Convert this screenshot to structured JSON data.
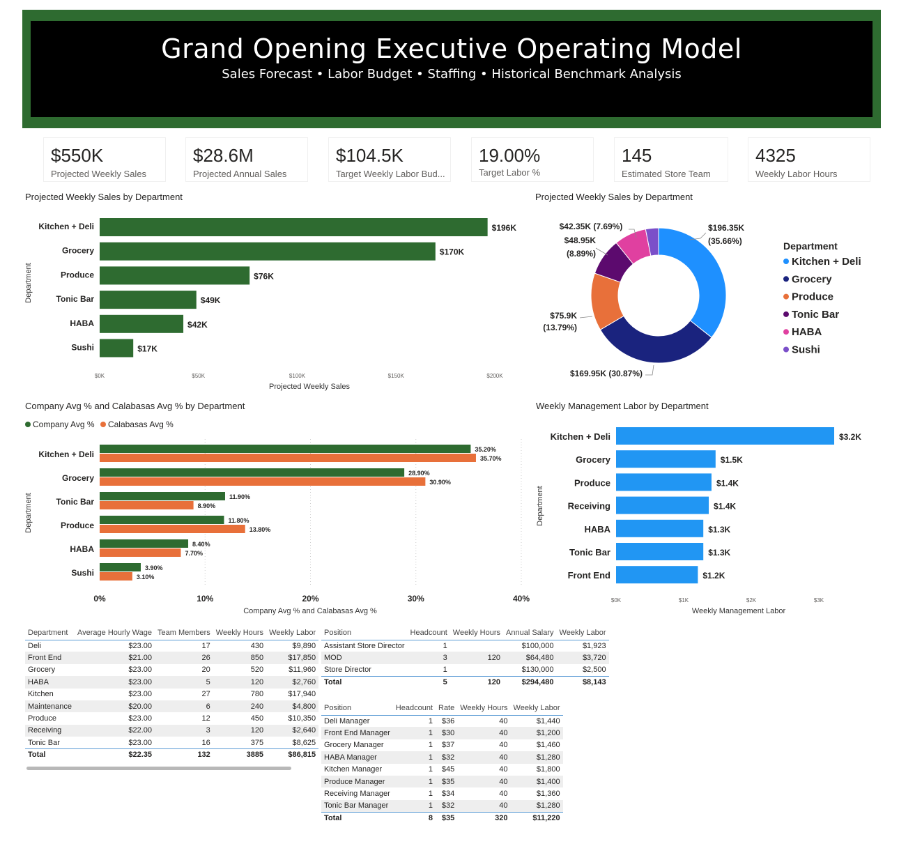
{
  "header": {
    "title": "Grand Opening Executive Operating Model",
    "subtitle": "Sales Forecast • Labor Budget • Staffing • Historical Benchmark Analysis"
  },
  "kpis": [
    {
      "value": "$550K",
      "label": "Projected Weekly Sales"
    },
    {
      "value": "$28.6M",
      "label": "Projected Annual Sales"
    },
    {
      "value": "$104.5K",
      "label": "Target Weekly Labor Bud..."
    },
    {
      "value": "19.00%",
      "label": "Target Labor %"
    },
    {
      "value": "145",
      "label": "Estimated Store Team"
    },
    {
      "value": "4325",
      "label": "Weekly Labor Hours"
    }
  ],
  "colors": {
    "green": "#2e6b30",
    "orange": "#e8703a",
    "blue": "#2196f3",
    "kitchen_deli": "#1e90ff",
    "grocery": "#1a237e",
    "produce": "#e8703a",
    "tonic_bar": "#5c0a6e",
    "haba": "#e040a0",
    "sushi": "#7b4fc9"
  },
  "chart_data": [
    {
      "type": "bar",
      "orientation": "horizontal",
      "title": "Projected Weekly Sales by Department",
      "xlabel": "Projected Weekly Sales",
      "ylabel": "Department",
      "categories": [
        "Kitchen + Deli",
        "Grocery",
        "Produce",
        "Tonic Bar",
        "HABA",
        "Sushi"
      ],
      "values": [
        196350,
        169950,
        75900,
        48950,
        42350,
        17000
      ],
      "data_labels": [
        "$196K",
        "$170K",
        "$76K",
        "$49K",
        "$42K",
        "$17K"
      ],
      "xlim": [
        0,
        200000
      ],
      "xticks": [
        "$0K",
        "$50K",
        "$100K",
        "$150K",
        "$200K"
      ],
      "grid": false
    },
    {
      "type": "pie",
      "donut": true,
      "title": "Projected Weekly Sales by Department",
      "legend_title": "Department",
      "legend_position": "right",
      "categories": [
        "Kitchen + Deli",
        "Grocery",
        "Produce",
        "Tonic Bar",
        "HABA",
        "Sushi"
      ],
      "values": [
        196350,
        169950,
        75900,
        48950,
        42350,
        17000
      ],
      "data_labels": [
        {
          "value": "$196.35K",
          "pct": "(35.66%)"
        },
        {
          "value": "$169.95K (30.87%)",
          "pct": ""
        },
        {
          "value": "$75.9K",
          "pct": "(13.79%)"
        },
        {
          "value": "$48.95K",
          "pct": "(8.89%)"
        },
        {
          "value": "$42.35K (7.69%)",
          "pct": ""
        }
      ]
    },
    {
      "type": "bar",
      "orientation": "horizontal",
      "title": "Company Avg % and Calabasas Avg % by Department",
      "xlabel": "Company Avg % and Calabasas Avg %",
      "ylabel": "Department",
      "categories": [
        "Kitchen + Deli",
        "Grocery",
        "Tonic Bar",
        "Produce",
        "HABA",
        "Sushi"
      ],
      "series": [
        {
          "name": "Company Avg %",
          "values": [
            35.2,
            28.9,
            11.9,
            11.8,
            8.4,
            3.9
          ],
          "labels": [
            "35.20%",
            "28.90%",
            "11.90%",
            "11.80%",
            "8.40%",
            "3.90%"
          ]
        },
        {
          "name": "Calabasas Avg %",
          "values": [
            35.7,
            30.9,
            8.9,
            13.8,
            7.7,
            3.1
          ],
          "labels": [
            "35.70%",
            "30.90%",
            "8.90%",
            "13.80%",
            "7.70%",
            "3.10%"
          ]
        }
      ],
      "xlim": [
        0,
        40
      ],
      "xticks": [
        "0%",
        "10%",
        "20%",
        "30%",
        "40%"
      ],
      "legend_position": "top-left",
      "grid": true
    },
    {
      "type": "bar",
      "orientation": "horizontal",
      "title": "Weekly Management Labor by Department",
      "xlabel": "Weekly Management Labor",
      "ylabel": "Department",
      "categories": [
        "Kitchen + Deli",
        "Grocery",
        "Produce",
        "Receiving",
        "HABA",
        "Tonic Bar",
        "Front End"
      ],
      "values": [
        3200,
        1460,
        1400,
        1360,
        1280,
        1280,
        1200
      ],
      "data_labels": [
        "$3.2K",
        "$1.5K",
        "$1.4K",
        "$1.4K",
        "$1.3K",
        "$1.3K",
        "$1.2K"
      ],
      "xlim": [
        0,
        3200
      ],
      "xticks": [
        "$0K",
        "$1K",
        "$2K",
        "$3K"
      ],
      "grid": false
    }
  ],
  "dept_table": {
    "columns": [
      "Department",
      "Average Hourly Wage",
      "Team Members",
      "Weekly Hours",
      "Weekly Labor"
    ],
    "rows": [
      [
        "Deli",
        "$23.00",
        "17",
        "430",
        "$9,890"
      ],
      [
        "Front End",
        "$21.00",
        "26",
        "850",
        "$17,850"
      ],
      [
        "Grocery",
        "$23.00",
        "20",
        "520",
        "$11,960"
      ],
      [
        "HABA",
        "$23.00",
        "5",
        "120",
        "$2,760"
      ],
      [
        "Kitchen",
        "$23.00",
        "27",
        "780",
        "$17,940"
      ],
      [
        "Maintenance",
        "$20.00",
        "6",
        "240",
        "$4,800"
      ],
      [
        "Produce",
        "$23.00",
        "12",
        "450",
        "$10,350"
      ],
      [
        "Receiving",
        "$22.00",
        "3",
        "120",
        "$2,640"
      ],
      [
        "Tonic Bar",
        "$23.00",
        "16",
        "375",
        "$8,625"
      ]
    ],
    "total": [
      "Total",
      "$22.35",
      "132",
      "3885",
      "$86,815"
    ]
  },
  "exec_table": {
    "columns": [
      "Position",
      "Headcount",
      "Weekly Hours",
      "Annual Salary",
      "Weekly Labor"
    ],
    "rows": [
      [
        "Assistant Store Director",
        "1",
        "",
        "$100,000",
        "$1,923"
      ],
      [
        "MOD",
        "3",
        "120",
        "$64,480",
        "$3,720"
      ],
      [
        "Store Director",
        "1",
        "",
        "$130,000",
        "$2,500"
      ]
    ],
    "total": [
      "Total",
      "5",
      "120",
      "$294,480",
      "$8,143"
    ]
  },
  "mgr_table": {
    "columns": [
      "Position",
      "Headcount",
      "Rate",
      "Weekly Hours",
      "Weekly Labor"
    ],
    "rows": [
      [
        "Deli Manager",
        "1",
        "$36",
        "40",
        "$1,440"
      ],
      [
        "Front End Manager",
        "1",
        "$30",
        "40",
        "$1,200"
      ],
      [
        "Grocery Manager",
        "1",
        "$37",
        "40",
        "$1,460"
      ],
      [
        "HABA Manager",
        "1",
        "$32",
        "40",
        "$1,280"
      ],
      [
        "Kitchen Manager",
        "1",
        "$45",
        "40",
        "$1,800"
      ],
      [
        "Produce Manager",
        "1",
        "$35",
        "40",
        "$1,400"
      ],
      [
        "Receiving Manager",
        "1",
        "$34",
        "40",
        "$1,360"
      ],
      [
        "Tonic Bar Manager",
        "1",
        "$32",
        "40",
        "$1,280"
      ]
    ],
    "total": [
      "Total",
      "8",
      "$35",
      "320",
      "$11,220"
    ]
  }
}
